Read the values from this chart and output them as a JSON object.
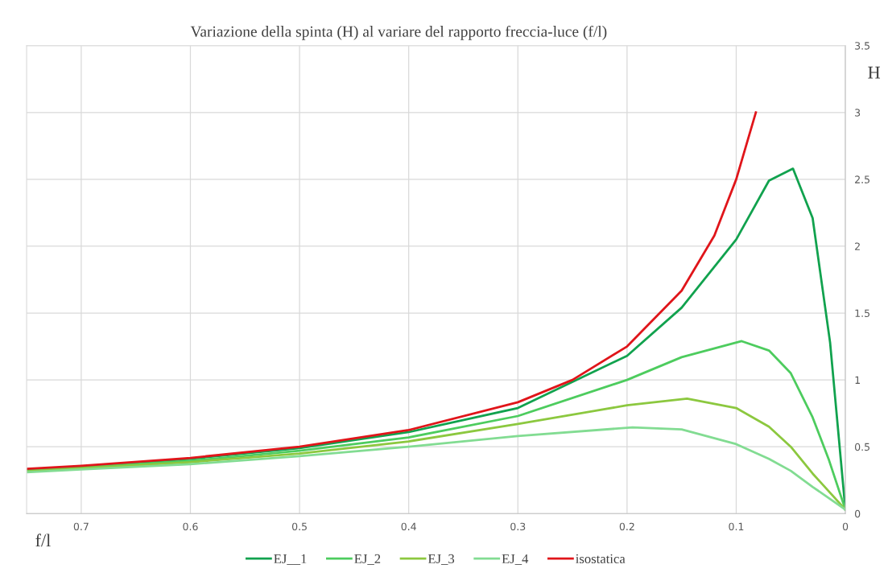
{
  "chart_data": {
    "type": "line",
    "title": "Variazione della spinta (H) al variare del rapporto freccia-luce (f/l)",
    "xlabel": "f/l",
    "ylabel": "H",
    "xlim": [
      0.75,
      0
    ],
    "xticks": [
      0.7,
      0.6,
      0.5,
      0.4,
      0.3,
      0.2,
      0.1,
      0
    ],
    "ylim": [
      0,
      3.5
    ],
    "yticks": [
      0,
      0.5,
      1,
      1.5,
      2,
      2.5,
      3,
      3.5
    ],
    "grid": true,
    "legend": "bottom",
    "marker": "none",
    "line_style": "solid",
    "series": [
      {
        "name": "EJ__1",
        "color": "#11a24e",
        "x": [
          0.75,
          0.7,
          0.6,
          0.5,
          0.4,
          0.3,
          0.2,
          0.15,
          0.1,
          0.07,
          0.048,
          0.03,
          0.014,
          0
        ],
        "values": [
          0.33,
          0.35,
          0.41,
          0.49,
          0.61,
          0.79,
          1.18,
          1.54,
          2.05,
          2.49,
          2.58,
          2.21,
          1.28,
          0.03
        ]
      },
      {
        "name": "EJ_2",
        "color": "#4dcc5e",
        "x": [
          0.75,
          0.7,
          0.6,
          0.5,
          0.4,
          0.3,
          0.2,
          0.15,
          0.095,
          0.07,
          0.05,
          0.03,
          0.015,
          0
        ],
        "values": [
          0.32,
          0.345,
          0.395,
          0.47,
          0.57,
          0.73,
          1.0,
          1.17,
          1.29,
          1.22,
          1.05,
          0.72,
          0.4,
          0.03
        ]
      },
      {
        "name": "EJ_3",
        "color": "#8cc83f",
        "x": [
          0.75,
          0.7,
          0.6,
          0.5,
          0.4,
          0.3,
          0.2,
          0.145,
          0.1,
          0.07,
          0.05,
          0.03,
          0
        ],
        "values": [
          0.315,
          0.34,
          0.385,
          0.45,
          0.54,
          0.67,
          0.81,
          0.86,
          0.79,
          0.65,
          0.5,
          0.3,
          0.03
        ]
      },
      {
        "name": "EJ_4",
        "color": "#82dc92",
        "x": [
          0.75,
          0.7,
          0.6,
          0.5,
          0.4,
          0.3,
          0.195,
          0.15,
          0.1,
          0.07,
          0.05,
          0.03,
          0
        ],
        "values": [
          0.31,
          0.33,
          0.37,
          0.43,
          0.5,
          0.58,
          0.645,
          0.63,
          0.52,
          0.41,
          0.32,
          0.2,
          0.03
        ]
      },
      {
        "name": "isostatica",
        "color": "#e0151a",
        "x": [
          0.75,
          0.7,
          0.6,
          0.5,
          0.4,
          0.3,
          0.25,
          0.2,
          0.15,
          0.12,
          0.1,
          0.082
        ],
        "values": [
          0.335,
          0.357,
          0.417,
          0.5,
          0.625,
          0.833,
          1.0,
          1.25,
          1.667,
          2.08,
          2.5,
          3.0
        ]
      }
    ]
  }
}
